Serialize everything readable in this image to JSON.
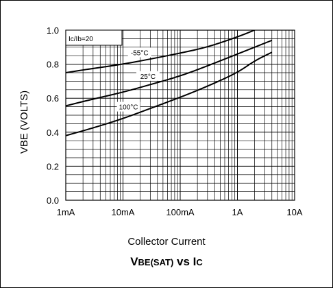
{
  "chart_data": {
    "type": "line",
    "title_parts": {
      "a": "V",
      "b": "BE(SAT)",
      "c": " vs I",
      "d": "C"
    },
    "xlabel": "Collector Current",
    "ylabel": "VBE (VOLTS)",
    "x_scale": "log",
    "xlim_amps": [
      0.001,
      10
    ],
    "ylim": [
      0.0,
      1.0
    ],
    "x_ticks": [
      {
        "value": 0.001,
        "label": "1mA"
      },
      {
        "value": 0.01,
        "label": "10mA"
      },
      {
        "value": 0.1,
        "label": "100mA"
      },
      {
        "value": 1,
        "label": "1A"
      },
      {
        "value": 10,
        "label": "10A"
      }
    ],
    "y_ticks": [
      {
        "value": 0.0,
        "label": "0.0"
      },
      {
        "value": 0.2,
        "label": "0.2"
      },
      {
        "value": 0.4,
        "label": "0.4"
      },
      {
        "value": 0.6,
        "label": "0.6"
      },
      {
        "value": 0.8,
        "label": "0.8"
      },
      {
        "value": 1.0,
        "label": "1.0"
      }
    ],
    "grid": true,
    "condition_label": "Ic/Ib=20",
    "series": [
      {
        "name": "-55°C",
        "x": [
          0.001,
          0.003,
          0.01,
          0.03,
          0.1,
          0.3,
          1,
          2,
          3.5
        ],
        "y": [
          0.75,
          0.775,
          0.8,
          0.83,
          0.865,
          0.9,
          0.96,
          1.0,
          1.04
        ]
      },
      {
        "name": "25°C",
        "x": [
          0.001,
          0.003,
          0.01,
          0.03,
          0.1,
          0.3,
          1,
          2,
          4
        ],
        "y": [
          0.555,
          0.595,
          0.635,
          0.68,
          0.73,
          0.79,
          0.86,
          0.9,
          0.94
        ]
      },
      {
        "name": "100°C",
        "x": [
          0.001,
          0.003,
          0.01,
          0.03,
          0.1,
          0.3,
          1,
          2,
          4
        ],
        "y": [
          0.38,
          0.425,
          0.48,
          0.54,
          0.605,
          0.67,
          0.75,
          0.82,
          0.87
        ]
      }
    ]
  }
}
